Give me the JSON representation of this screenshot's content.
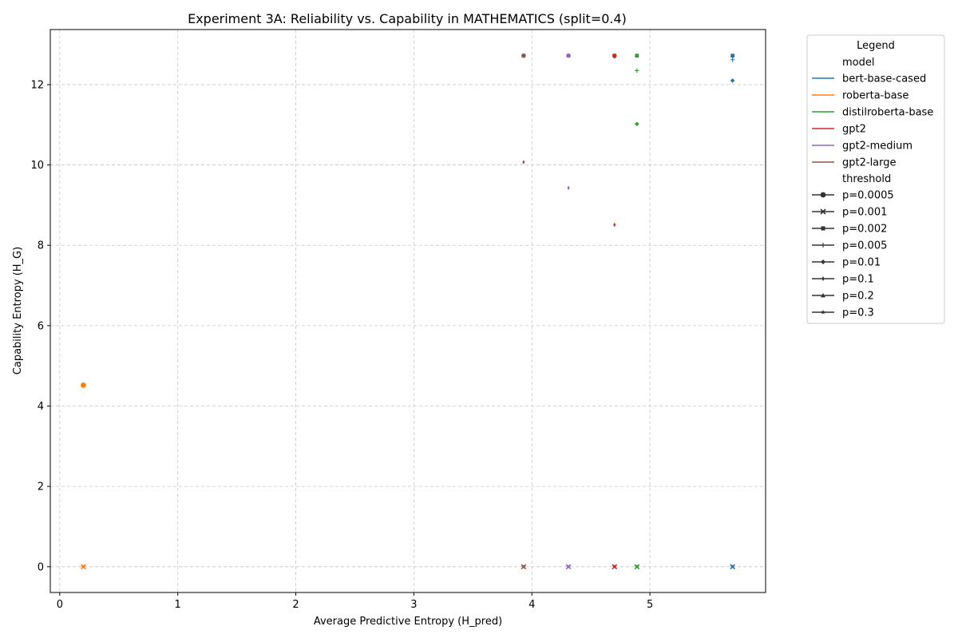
{
  "chart_data": {
    "type": "scatter",
    "title": "Experiment 3A: Reliability vs. Capability in MATHEMATICS (split=0.4)",
    "xlabel": "Average Predictive Entropy (H_pred)",
    "ylabel": "Capability Entropy (H_G)",
    "xlim": [
      -0.08,
      5.98
    ],
    "ylim": [
      -0.64,
      13.37
    ],
    "xticks": [
      0,
      1,
      2,
      3,
      4,
      5
    ],
    "yticks": [
      0,
      2,
      4,
      6,
      8,
      10,
      12
    ],
    "grid": true,
    "legend_placement": "outside-right",
    "legend": {
      "title": "Legend",
      "model_header": "model",
      "threshold_header": "threshold",
      "models": [
        {
          "name": "bert-base-cased",
          "color": "#1f77b4"
        },
        {
          "name": "roberta-base",
          "color": "#ff7f0e"
        },
        {
          "name": "distilroberta-base",
          "color": "#2ca02c"
        },
        {
          "name": "gpt2",
          "color": "#d62728"
        },
        {
          "name": "gpt2-medium",
          "color": "#9467bd"
        },
        {
          "name": "gpt2-large",
          "color": "#8c564b"
        }
      ],
      "thresholds": [
        {
          "name": "p=0.0005",
          "marker": "circle"
        },
        {
          "name": "p=0.001",
          "marker": "x"
        },
        {
          "name": "p=0.002",
          "marker": "square"
        },
        {
          "name": "p=0.005",
          "marker": "plus"
        },
        {
          "name": "p=0.01",
          "marker": "diamond"
        },
        {
          "name": "p=0.1",
          "marker": "thin-diamond"
        },
        {
          "name": "p=0.2",
          "marker": "triangle"
        },
        {
          "name": "p=0.3",
          "marker": "star"
        }
      ]
    },
    "points": [
      {
        "model": "roberta-base",
        "threshold": "p=0.0005",
        "x": 0.2,
        "y": 4.52
      },
      {
        "model": "roberta-base",
        "threshold": "p=0.001",
        "x": 0.2,
        "y": 0.0
      },
      {
        "model": "roberta-base",
        "threshold": "p=0.3",
        "x": 0.2,
        "y": 0.0
      },
      {
        "model": "gpt2-large",
        "threshold": "p=0.002",
        "x": 3.93,
        "y": 12.72
      },
      {
        "model": "gpt2-large",
        "threshold": "p=0.005",
        "x": 3.93,
        "y": 12.72
      },
      {
        "model": "gpt2-large",
        "threshold": "p=0.01",
        "x": 3.93,
        "y": 12.72
      },
      {
        "model": "gpt2-large",
        "threshold": "p=0.1",
        "x": 3.93,
        "y": 10.07
      },
      {
        "model": "gpt2-large",
        "threshold": "p=0.001",
        "x": 3.93,
        "y": 0.0
      },
      {
        "model": "gpt2-large",
        "threshold": "p=0.3",
        "x": 3.93,
        "y": 0.0
      },
      {
        "model": "gpt2-medium",
        "threshold": "p=0.002",
        "x": 4.31,
        "y": 12.72
      },
      {
        "model": "gpt2-medium",
        "threshold": "p=0.005",
        "x": 4.31,
        "y": 12.72
      },
      {
        "model": "gpt2-medium",
        "threshold": "p=0.01",
        "x": 4.31,
        "y": 12.72
      },
      {
        "model": "gpt2-medium",
        "threshold": "p=0.1",
        "x": 4.31,
        "y": 9.43
      },
      {
        "model": "gpt2-medium",
        "threshold": "p=0.001",
        "x": 4.31,
        "y": 0.0
      },
      {
        "model": "gpt2-medium",
        "threshold": "p=0.3",
        "x": 4.31,
        "y": 0.0
      },
      {
        "model": "gpt2",
        "threshold": "p=0.002",
        "x": 4.7,
        "y": 12.72
      },
      {
        "model": "gpt2",
        "threshold": "p=0.005",
        "x": 4.7,
        "y": 12.72
      },
      {
        "model": "gpt2",
        "threshold": "p=0.01",
        "x": 4.7,
        "y": 12.7
      },
      {
        "model": "gpt2",
        "threshold": "p=0.1",
        "x": 4.7,
        "y": 8.51
      },
      {
        "model": "gpt2",
        "threshold": "p=0.001",
        "x": 4.7,
        "y": 0.0
      },
      {
        "model": "gpt2",
        "threshold": "p=0.3",
        "x": 4.7,
        "y": 0.0
      },
      {
        "model": "distilroberta-base",
        "threshold": "p=0.002",
        "x": 4.89,
        "y": 12.72
      },
      {
        "model": "distilroberta-base",
        "threshold": "p=0.005",
        "x": 4.89,
        "y": 12.35
      },
      {
        "model": "distilroberta-base",
        "threshold": "p=0.01",
        "x": 4.89,
        "y": 11.02
      },
      {
        "model": "distilroberta-base",
        "threshold": "p=0.001",
        "x": 4.89,
        "y": 0.0
      },
      {
        "model": "distilroberta-base",
        "threshold": "p=0.3",
        "x": 4.89,
        "y": 0.0
      },
      {
        "model": "bert-base-cased",
        "threshold": "p=0.002",
        "x": 5.7,
        "y": 12.72
      },
      {
        "model": "bert-base-cased",
        "threshold": "p=0.005",
        "x": 5.7,
        "y": 12.62
      },
      {
        "model": "bert-base-cased",
        "threshold": "p=0.01",
        "x": 5.7,
        "y": 12.1
      },
      {
        "model": "bert-base-cased",
        "threshold": "p=0.001",
        "x": 5.7,
        "y": 0.0
      },
      {
        "model": "bert-base-cased",
        "threshold": "p=0.3",
        "x": 5.7,
        "y": 0.0
      }
    ]
  }
}
